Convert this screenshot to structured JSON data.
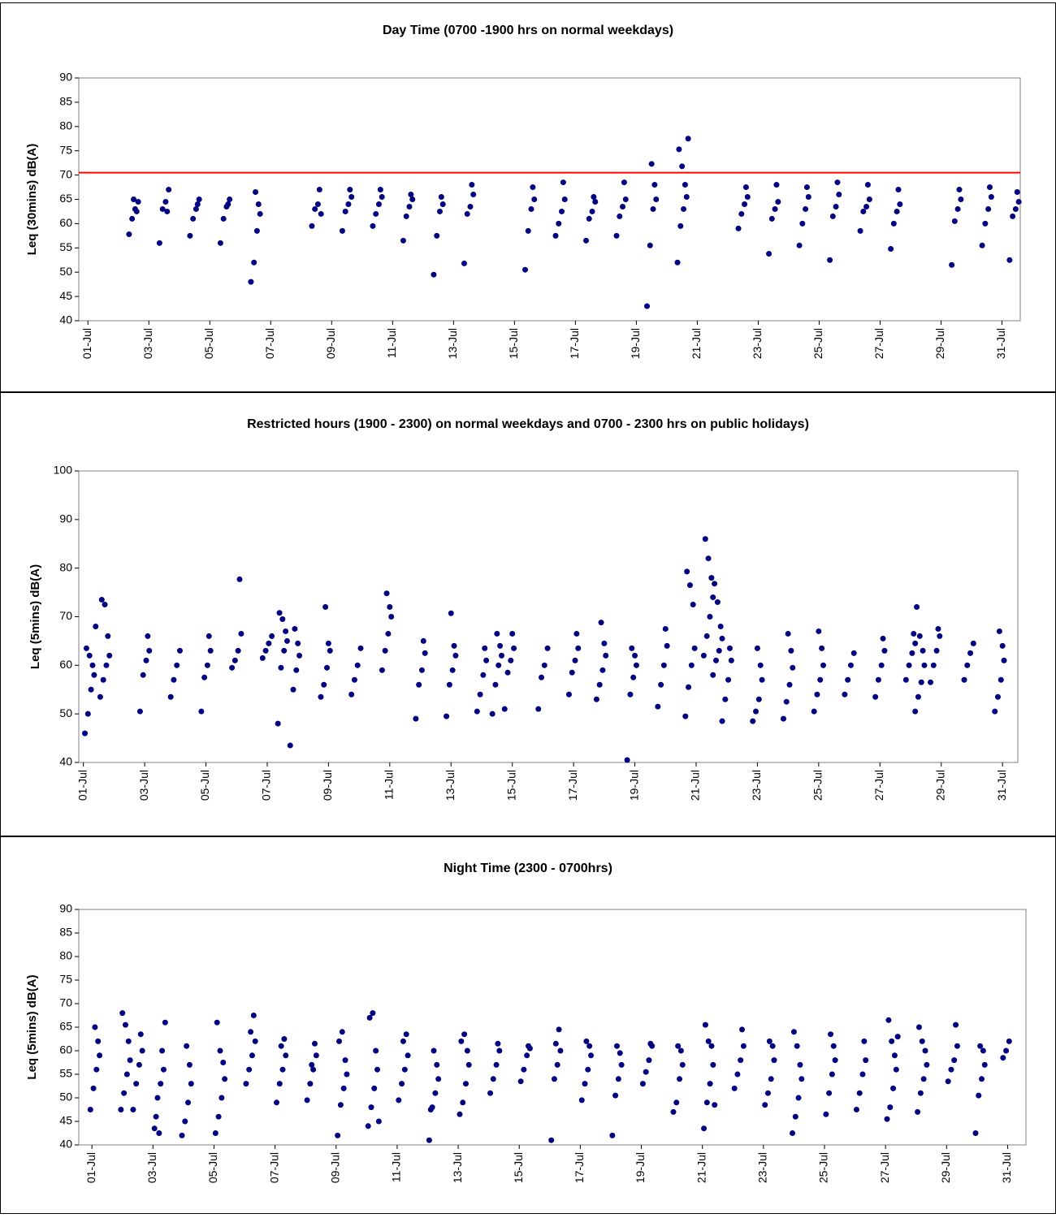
{
  "chart_data": [
    {
      "type": "scatter",
      "title": "Day Time (0700 -1900 hrs on normal weekdays)",
      "y_label": "Leq (30mins) dB(A)",
      "color": "#000080",
      "hline": 70.5,
      "hline_color": "#ff0000",
      "xlim": [
        0.7,
        31.6
      ],
      "ylim": [
        40,
        90
      ],
      "yticks": [
        40,
        45,
        50,
        55,
        60,
        65,
        70,
        75,
        80,
        85,
        90
      ],
      "xticks": [
        {
          "value": 1,
          "label": "01-Jul"
        },
        {
          "value": 3,
          "label": "03-Jul"
        },
        {
          "value": 5,
          "label": "05-Jul"
        },
        {
          "value": 7,
          "label": "07-Jul"
        },
        {
          "value": 9,
          "label": "09-Jul"
        },
        {
          "value": 11,
          "label": "11-Jul"
        },
        {
          "value": 13,
          "label": "13-Jul"
        },
        {
          "value": 15,
          "label": "15-Jul"
        },
        {
          "value": 17,
          "label": "17-Jul"
        },
        {
          "value": 19,
          "label": "19-Jul"
        },
        {
          "value": 21,
          "label": "21-Jul"
        },
        {
          "value": 23,
          "label": "23-Jul"
        },
        {
          "value": 25,
          "label": "25-Jul"
        },
        {
          "value": 27,
          "label": "27-Jul"
        },
        {
          "value": 29,
          "label": "29-Jul"
        },
        {
          "value": 31,
          "label": "31-Jul"
        }
      ],
      "x": [
        2.35,
        2.45,
        2.55,
        2.65,
        2.6,
        2.5,
        3.35,
        3.45,
        3.55,
        3.65,
        3.6,
        4.35,
        4.45,
        4.55,
        4.65,
        4.6,
        5.35,
        5.45,
        5.55,
        5.65,
        5.6,
        6.35,
        6.45,
        6.55,
        6.65,
        6.6,
        6.5,
        8.35,
        8.45,
        8.55,
        8.65,
        8.6,
        9.35,
        9.45,
        9.55,
        9.65,
        9.6,
        10.35,
        10.45,
        10.55,
        10.65,
        10.6,
        11.35,
        11.45,
        11.55,
        11.65,
        11.6,
        12.35,
        12.45,
        12.55,
        12.65,
        12.6,
        13.35,
        13.45,
        13.55,
        13.65,
        13.6,
        15.35,
        15.45,
        15.55,
        15.65,
        15.6,
        16.35,
        16.45,
        16.55,
        16.65,
        16.6,
        17.35,
        17.45,
        17.55,
        17.65,
        17.6,
        18.35,
        18.45,
        18.55,
        18.65,
        18.6,
        19.35,
        19.45,
        19.55,
        19.65,
        19.6,
        19.5,
        20.35,
        20.45,
        20.55,
        20.65,
        20.6,
        20.5,
        20.4,
        20.7,
        22.35,
        22.45,
        22.55,
        22.65,
        22.6,
        23.35,
        23.45,
        23.55,
        23.65,
        23.6,
        24.35,
        24.45,
        24.55,
        24.65,
        24.6,
        25.35,
        25.45,
        25.55,
        25.65,
        25.6,
        26.35,
        26.45,
        26.55,
        26.65,
        26.6,
        27.35,
        27.45,
        27.55,
        27.65,
        27.6,
        29.35,
        29.45,
        29.55,
        29.65,
        29.6,
        30.35,
        30.45,
        30.55,
        30.65,
        30.6,
        31.25,
        31.35,
        31.45,
        31.55,
        31.5
      ],
      "values": [
        57.8,
        61,
        63,
        64.5,
        62.5,
        65,
        56,
        63,
        64.5,
        67,
        62.5,
        57.5,
        61,
        63,
        65,
        64,
        56,
        61,
        63.5,
        65,
        64,
        48,
        52,
        58.5,
        62,
        64,
        66.5,
        59.5,
        63,
        64,
        62,
        67,
        58.5,
        62.5,
        64,
        65.5,
        67,
        59.5,
        62,
        64,
        65.5,
        67,
        56.5,
        61.5,
        63.5,
        65,
        66,
        49.5,
        57.5,
        62.5,
        64,
        65.5,
        51.8,
        62,
        63.5,
        66,
        68,
        50.5,
        58.5,
        63,
        65,
        67.5,
        57.5,
        60,
        62.5,
        65,
        68.5,
        56.5,
        61,
        62.5,
        64.5,
        65.5,
        57.5,
        61.5,
        63.5,
        65,
        68.5,
        43,
        55.5,
        63,
        65,
        68,
        72.3,
        52,
        59.5,
        63,
        65.5,
        68,
        71.8,
        75.3,
        77.5,
        59,
        62,
        64,
        65.5,
        67.5,
        53.8,
        61,
        63,
        64.5,
        68,
        55.5,
        60,
        63,
        65.5,
        67.5,
        52.5,
        61.5,
        63.5,
        66,
        68.5,
        58.5,
        62.5,
        63.5,
        65,
        68,
        54.8,
        60,
        62.5,
        64,
        67,
        51.5,
        60.5,
        63,
        65,
        67,
        55.5,
        60,
        63,
        65.5,
        67.5,
        52.5,
        61.5,
        63,
        64.5,
        66.5
      ]
    },
    {
      "type": "scatter",
      "title": "Restricted hours (1900 - 2300) on normal weekdays and 0700 - 2300 hrs on public holidays)",
      "y_label": "Leq (5mins) dB(A)",
      "color": "#000080",
      "xlim": [
        0.85,
        31.5
      ],
      "ylim": [
        40,
        100
      ],
      "yticks": [
        40,
        50,
        60,
        70,
        80,
        90,
        100
      ],
      "xticks": [
        {
          "value": 1,
          "label": "01-Jul"
        },
        {
          "value": 3,
          "label": "03-Jul"
        },
        {
          "value": 5,
          "label": "05-Jul"
        },
        {
          "value": 7,
          "label": "07-Jul"
        },
        {
          "value": 9,
          "label": "09-Jul"
        },
        {
          "value": 11,
          "label": "11-Jul"
        },
        {
          "value": 13,
          "label": "13-Jul"
        },
        {
          "value": 15,
          "label": "15-Jul"
        },
        {
          "value": 17,
          "label": "17-Jul"
        },
        {
          "value": 19,
          "label": "19-Jul"
        },
        {
          "value": 21,
          "label": "21-Jul"
        },
        {
          "value": 23,
          "label": "23-Jul"
        },
        {
          "value": 25,
          "label": "25-Jul"
        },
        {
          "value": 27,
          "label": "27-Jul"
        },
        {
          "value": 29,
          "label": "29-Jul"
        },
        {
          "value": 31,
          "label": "31-Jul"
        }
      ],
      "x": [
        1.05,
        1.15,
        1.25,
        1.35,
        1.3,
        1.2,
        1.1,
        1.4,
        1.55,
        1.65,
        1.75,
        1.85,
        1.8,
        1.7,
        1.6,
        2.85,
        2.95,
        3.05,
        3.15,
        3.1,
        3.85,
        3.95,
        4.05,
        4.15,
        4.85,
        4.95,
        5.05,
        5.15,
        5.1,
        5.85,
        5.95,
        6.05,
        6.15,
        6.1,
        6.85,
        6.95,
        7.05,
        7.15,
        7.35,
        7.45,
        7.55,
        7.65,
        7.6,
        7.5,
        7.4,
        7.75,
        7.85,
        7.95,
        8.05,
        8,
        7.9,
        8.75,
        8.85,
        8.95,
        9.05,
        9,
        8.9,
        9.75,
        9.85,
        9.95,
        10.05,
        10.75,
        10.85,
        10.95,
        11.05,
        11,
        10.9,
        11.85,
        11.95,
        12.05,
        12.15,
        12.1,
        12.85,
        12.95,
        13.05,
        13.15,
        13.1,
        13,
        13.85,
        13.95,
        14.05,
        14.15,
        14.1,
        14.35,
        14.45,
        14.55,
        14.65,
        14.6,
        14.5,
        14.75,
        14.85,
        14.95,
        15.05,
        15,
        15.85,
        15.95,
        16.05,
        16.15,
        16.85,
        16.95,
        17.05,
        17.15,
        17.1,
        17.75,
        17.85,
        17.95,
        18.05,
        18,
        17.9,
        18.75,
        18.85,
        18.95,
        19.05,
        19,
        18.9,
        19.75,
        19.85,
        19.95,
        20.05,
        20,
        20.65,
        20.75,
        20.85,
        20.95,
        20.9,
        20.8,
        20.7,
        21.25,
        21.35,
        21.45,
        21.55,
        21.5,
        21.4,
        21.3,
        21.55,
        21.65,
        21.75,
        21.85,
        21.8,
        21.7,
        21.6,
        21.85,
        21.95,
        22.05,
        22.15,
        22.1,
        22.85,
        22.95,
        23.05,
        23.15,
        23.1,
        23,
        23.85,
        23.95,
        24.05,
        24.15,
        24.1,
        24,
        24.85,
        24.95,
        25.05,
        25.15,
        25.1,
        25,
        25.85,
        25.95,
        26.05,
        26.15,
        26.85,
        26.95,
        27.05,
        27.15,
        27.1,
        27.85,
        27.95,
        28.05,
        28.15,
        28.1,
        28.15,
        28.25,
        28.35,
        28.45,
        28.4,
        28.3,
        28.2,
        28.65,
        28.75,
        28.85,
        28.95,
        28.9,
        29.75,
        29.85,
        29.95,
        30.05,
        30.75,
        30.85,
        30.95,
        31.05,
        31,
        30.9
      ],
      "values": [
        46,
        50,
        55,
        58,
        60,
        62,
        63.5,
        68,
        53.5,
        57,
        60,
        62,
        66,
        72.5,
        73.5,
        50.5,
        58,
        61,
        63,
        66,
        53.5,
        57,
        60,
        63,
        50.5,
        57.5,
        60,
        63,
        66,
        59.5,
        61,
        63,
        66.5,
        77.7,
        61.5,
        63,
        64.5,
        66,
        48,
        59.5,
        63,
        65,
        67,
        69.5,
        70.8,
        43.5,
        55,
        59,
        62,
        64.5,
        67.5,
        53.5,
        56,
        59.5,
        63,
        64.5,
        72,
        54,
        57,
        60,
        63.5,
        59,
        63,
        66.5,
        70,
        72,
        74.8,
        49,
        56,
        59,
        62.5,
        65,
        49.5,
        56,
        59,
        62,
        64,
        70.7,
        50.5,
        54,
        58,
        61,
        63.5,
        50,
        56,
        60,
        62,
        64,
        66.5,
        51,
        58.5,
        61,
        63.5,
        66.5,
        51,
        57.5,
        60,
        63.5,
        54,
        58.5,
        61,
        63.5,
        66.5,
        53,
        56,
        59,
        62,
        64.5,
        68.8,
        40.5,
        54,
        57.5,
        60,
        62,
        63.5,
        51.5,
        56,
        60,
        64,
        67.5,
        49.5,
        55.5,
        60,
        63.5,
        72.5,
        76.5,
        79.3,
        62,
        66,
        70,
        74,
        78,
        82,
        86,
        58,
        61,
        63,
        65.5,
        68,
        73,
        76.8,
        48.5,
        53,
        57,
        61,
        63.5,
        48.5,
        50.5,
        53,
        57,
        60,
        63.5,
        49,
        52.5,
        56,
        59.5,
        63,
        66.5,
        50.5,
        54,
        57,
        60,
        63.5,
        67,
        54,
        57,
        60,
        62.5,
        53.5,
        57,
        60,
        63,
        65.5,
        57,
        60,
        62.5,
        64.5,
        66.5,
        50.5,
        53.5,
        56.5,
        60,
        63,
        66,
        72,
        56.5,
        60,
        63,
        66,
        67.5,
        57,
        60,
        62.5,
        64.5,
        50.5,
        53.5,
        57,
        61,
        64,
        67
      ]
    },
    {
      "type": "scatter",
      "title": "Night Time (2300 - 0700hrs)",
      "y_label": "Leq (5mins) dB(A)",
      "color": "#000080",
      "xlim": [
        0.57,
        31.6
      ],
      "ylim": [
        40,
        90
      ],
      "yticks": [
        40,
        45,
        50,
        55,
        60,
        65,
        70,
        75,
        80,
        85,
        90
      ],
      "xticks": [
        {
          "value": 1,
          "label": "01-Jul"
        },
        {
          "value": 3,
          "label": "03-Jul"
        },
        {
          "value": 5,
          "label": "05-Jul"
        },
        {
          "value": 7,
          "label": "07-Jul"
        },
        {
          "value": 9,
          "label": "09-Jul"
        },
        {
          "value": 11,
          "label": "11-Jul"
        },
        {
          "value": 13,
          "label": "13-Jul"
        },
        {
          "value": 15,
          "label": "15-Jul"
        },
        {
          "value": 17,
          "label": "17-Jul"
        },
        {
          "value": 19,
          "label": "19-Jul"
        },
        {
          "value": 21,
          "label": "21-Jul"
        },
        {
          "value": 23,
          "label": "23-Jul"
        },
        {
          "value": 25,
          "label": "25-Jul"
        },
        {
          "value": 27,
          "label": "27-Jul"
        },
        {
          "value": 29,
          "label": "29-Jul"
        },
        {
          "value": 31,
          "label": "31-Jul"
        }
      ],
      "x": [
        0.95,
        1.05,
        1.15,
        1.25,
        1.2,
        1.1,
        1.95,
        2.05,
        2.15,
        2.25,
        2.2,
        2.1,
        2,
        2.35,
        2.45,
        2.55,
        2.65,
        2.6,
        3.05,
        3.15,
        3.25,
        3.35,
        3.3,
        3.2,
        3.1,
        3.4,
        3.95,
        4.05,
        4.15,
        4.25,
        4.2,
        4.1,
        5.05,
        5.15,
        5.25,
        5.35,
        5.3,
        5.2,
        5.1,
        6.05,
        6.15,
        6.25,
        6.35,
        6.3,
        6.2,
        7.05,
        7.15,
        7.25,
        7.35,
        7.3,
        7.2,
        8.05,
        8.15,
        8.25,
        8.35,
        8.3,
        8.2,
        9.05,
        9.15,
        9.25,
        9.35,
        9.3,
        9.2,
        9.1,
        10.05,
        10.15,
        10.25,
        10.35,
        10.3,
        10.2,
        10.1,
        10.4,
        11.05,
        11.15,
        11.25,
        11.35,
        11.3,
        11.2,
        12.05,
        12.15,
        12.25,
        12.35,
        12.3,
        12.2,
        12.1,
        13.05,
        13.15,
        13.25,
        13.35,
        13.3,
        13.2,
        13.1,
        14.05,
        14.15,
        14.25,
        14.35,
        14.3,
        15.05,
        15.15,
        15.25,
        15.35,
        15.3,
        16.05,
        16.15,
        16.25,
        16.35,
        16.3,
        16.2,
        17.05,
        17.15,
        17.25,
        17.35,
        17.3,
        17.2,
        18.05,
        18.15,
        18.25,
        18.35,
        18.3,
        18.2,
        19.05,
        19.15,
        19.25,
        19.35,
        19.3,
        20.05,
        20.15,
        20.25,
        20.35,
        20.3,
        20.2,
        21.05,
        21.15,
        21.25,
        21.35,
        21.3,
        21.2,
        21.1,
        21.4,
        22.05,
        22.15,
        22.25,
        22.35,
        22.3,
        23.05,
        23.15,
        23.25,
        23.35,
        23.3,
        23.2,
        23.95,
        24.05,
        24.15,
        24.25,
        24.2,
        24.1,
        24,
        25.05,
        25.15,
        25.25,
        25.35,
        25.3,
        25.2,
        26.05,
        26.15,
        26.25,
        26.35,
        26.3,
        27.05,
        27.15,
        27.25,
        27.35,
        27.3,
        27.2,
        27.1,
        27.4,
        28.05,
        28.15,
        28.25,
        28.35,
        28.3,
        28.2,
        28.1,
        29.05,
        29.15,
        29.25,
        29.35,
        29.3,
        29.95,
        30.05,
        30.15,
        30.25,
        30.2,
        30.1,
        30.85,
        30.95,
        31.05
      ],
      "values": [
        47.5,
        52,
        56,
        59,
        62,
        65,
        47.5,
        51,
        55,
        58,
        62,
        65.5,
        68,
        47.5,
        53,
        57,
        60,
        63.5,
        43.5,
        50,
        53,
        56,
        60,
        42.5,
        46,
        66,
        42,
        45,
        49,
        53,
        57,
        61,
        42.5,
        46,
        50,
        54,
        57.5,
        60,
        66,
        53,
        56,
        59,
        62,
        67.5,
        64,
        49,
        53,
        56,
        59,
        62.5,
        61,
        49.5,
        53,
        56,
        59,
        61.5,
        57,
        42,
        48.5,
        52,
        55,
        58,
        64,
        62,
        44,
        48,
        52,
        56,
        60,
        68,
        67,
        45,
        49.5,
        53,
        56,
        59,
        63.5,
        62,
        41,
        48,
        51,
        54,
        57,
        60,
        47.5,
        46.5,
        49,
        53,
        57,
        60,
        63.5,
        62,
        51,
        54,
        57,
        60,
        61.5,
        53.5,
        56,
        59,
        60.5,
        61,
        41,
        54,
        57,
        60,
        64.5,
        61.5,
        49.5,
        53,
        56,
        59,
        61,
        62,
        42,
        50.5,
        54,
        57,
        59.5,
        61,
        53,
        55.5,
        58,
        61,
        61.5,
        47,
        49,
        54,
        57,
        60,
        61,
        43.5,
        49,
        53,
        57,
        61,
        62,
        65.5,
        48.5,
        52,
        55,
        58,
        61,
        64.5,
        48.5,
        51,
        54,
        58,
        61,
        62,
        42.5,
        46,
        50,
        54,
        57,
        61,
        64,
        46.5,
        51,
        55,
        58,
        61,
        63.5,
        47.5,
        51,
        55,
        58,
        62,
        45.5,
        48,
        52,
        56,
        59,
        62,
        66.5,
        63,
        47,
        51,
        54,
        57,
        60,
        62,
        65,
        53.5,
        56,
        58,
        61,
        65.5,
        42.5,
        50.5,
        54,
        57,
        60,
        61,
        58.5,
        60,
        62
      ]
    }
  ]
}
